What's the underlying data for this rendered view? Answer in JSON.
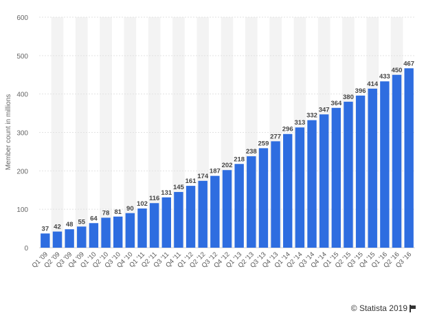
{
  "chart_data": {
    "type": "bar",
    "title": "",
    "xlabel": "",
    "ylabel": "Member count in millions",
    "ylim": [
      0,
      600
    ],
    "yticks": [
      0,
      100,
      200,
      300,
      400,
      500,
      600
    ],
    "grid": true,
    "categories": [
      "Q1 '09",
      "Q2 '09",
      "Q3 '09",
      "Q4 '09",
      "Q1 '10",
      "Q2 '10",
      "Q3 '10",
      "Q4 '10",
      "Q1 '11",
      "Q2 '11",
      "Q3 '11",
      "Q4 '11",
      "Q1 '12",
      "Q2 '12",
      "Q3 '12",
      "Q4 '12",
      "Q1 '13",
      "Q2 '13",
      "Q3 '13",
      "Q4 '13",
      "Q1 '14",
      "Q2 '14",
      "Q3 '14",
      "Q4 '14",
      "Q1 '15",
      "Q2 '15",
      "Q3 '15",
      "Q4 '15",
      "Q1 '16",
      "Q2 '16",
      "Q3 '16"
    ],
    "values": [
      37,
      42,
      48,
      55,
      64,
      78,
      81,
      90,
      102,
      116,
      131,
      145,
      161,
      174,
      187,
      202,
      218,
      238,
      259,
      277,
      296,
      313,
      332,
      347,
      364,
      380,
      396,
      414,
      433,
      450,
      467
    ],
    "bar_color": "#2e6de0"
  },
  "footer": {
    "credit": "© Statista 2019"
  }
}
